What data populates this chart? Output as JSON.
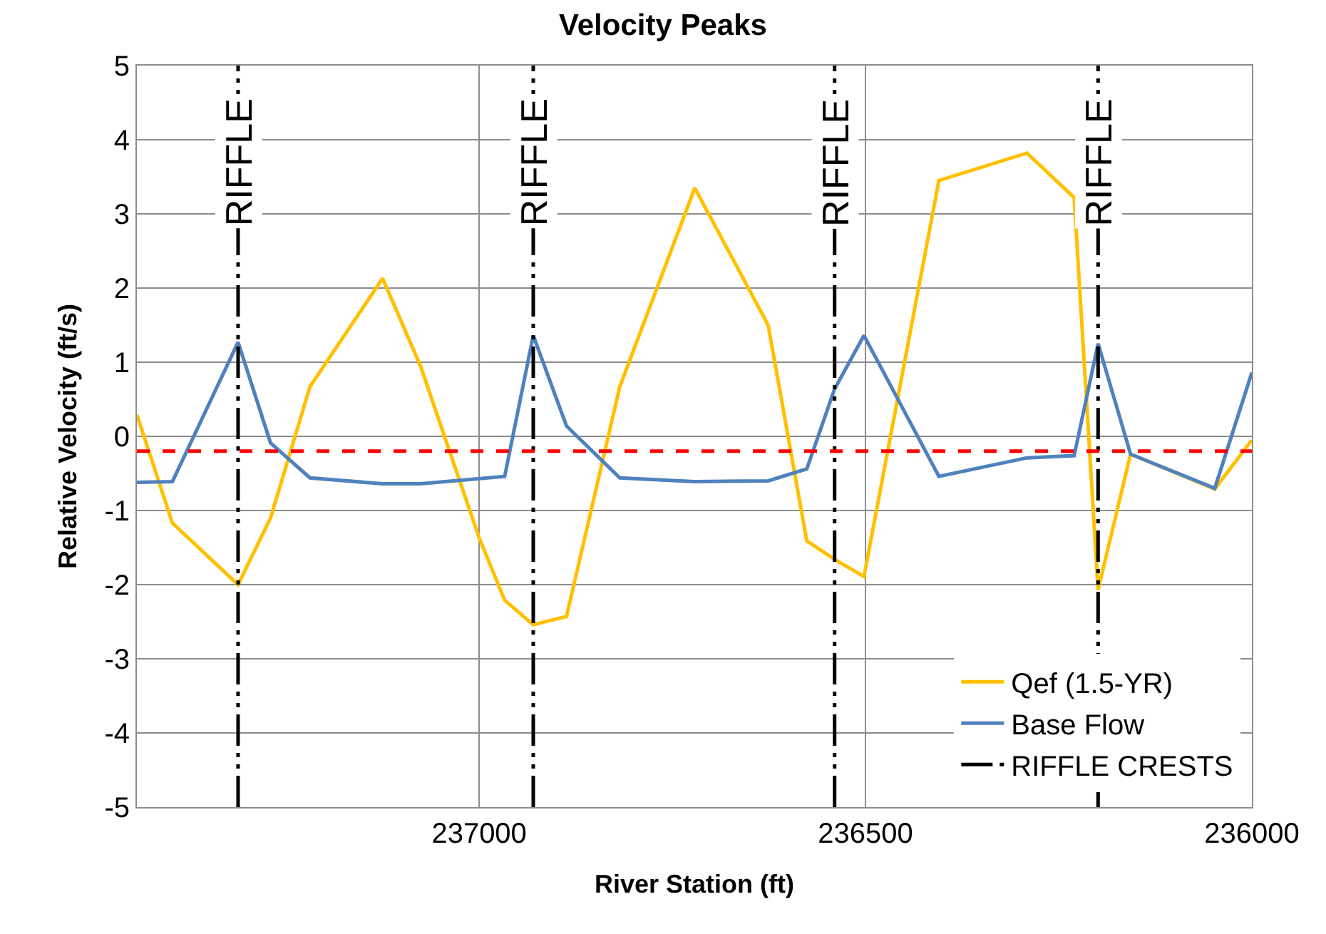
{
  "chart_data": {
    "type": "line",
    "title": "Velocity Peaks",
    "xlabel": "River Station (ft)",
    "ylabel": "Relative Velocity (ft/s)",
    "x": [
      237443,
      237397,
      237312,
      237270,
      237219,
      237125,
      237076,
      237000,
      236967,
      236930,
      236887,
      236818,
      236721,
      236626,
      236576,
      236540,
      236502,
      236405,
      236291,
      236230,
      236199,
      236157,
      236048,
      236000
    ],
    "series": [
      {
        "name": "Qef (1.5-YR)",
        "color": "#ffc000",
        "values": [
          0.29,
          -1.17,
          -2.0,
          -1.1,
          0.67,
          2.13,
          0.95,
          -1.37,
          -2.21,
          -2.54,
          -2.43,
          0.67,
          3.35,
          1.5,
          -1.41,
          -1.66,
          -1.89,
          3.45,
          3.82,
          3.22,
          -2.07,
          -0.24,
          -0.71,
          -0.05
        ]
      },
      {
        "name": "Base Flow",
        "color": "#4f81bd",
        "x": [
          237443,
          237397,
          237312,
          237270,
          237219,
          237125,
          237076,
          236967,
          236930,
          236887,
          236818,
          236721,
          236626,
          236576,
          236540,
          236502,
          236405,
          236291,
          236230,
          236199,
          236157,
          236048,
          236000
        ],
        "values": [
          -0.62,
          -0.61,
          1.27,
          -0.09,
          -0.56,
          -0.64,
          -0.64,
          -0.54,
          1.36,
          0.14,
          -0.56,
          -0.61,
          -0.6,
          -0.44,
          0.64,
          1.36,
          -0.54,
          -0.29,
          -0.26,
          1.25,
          -0.24,
          -0.7,
          0.86
        ]
      },
      {
        "name": "RIFFLE CRESTS",
        "color": "#000000",
        "line_style": "dashed",
        "x": [
          237312,
          237312,
          null,
          236930,
          236930,
          null,
          236540,
          236540,
          null,
          236199,
          236199
        ],
        "values": [
          -5,
          5,
          null,
          -5,
          5,
          null,
          -5,
          5,
          null,
          -5,
          5
        ]
      }
    ],
    "annotations": [
      {
        "text": "RIFFLE",
        "x": 237312,
        "y": 3.7
      },
      {
        "text": "RIFFLE",
        "x": 236930,
        "y": 3.7
      },
      {
        "text": "RIFFLE",
        "x": 236540,
        "y": 3.7
      },
      {
        "text": "RIFFLE",
        "x": 236199,
        "y": 3.7
      }
    ],
    "ref_lines": [
      {
        "axis": "y",
        "value": -0.2,
        "color": "#ff0000",
        "line_style": "dashed"
      }
    ],
    "xlim": [
      237443,
      236000
    ],
    "xticks": [
      237000,
      236500,
      236000
    ],
    "ylim": [
      -5,
      5
    ],
    "yticks": [
      -5,
      -4,
      -3,
      -2,
      -1,
      0,
      1,
      2,
      3,
      4,
      5
    ],
    "grid": true,
    "legend": "bottom right"
  }
}
